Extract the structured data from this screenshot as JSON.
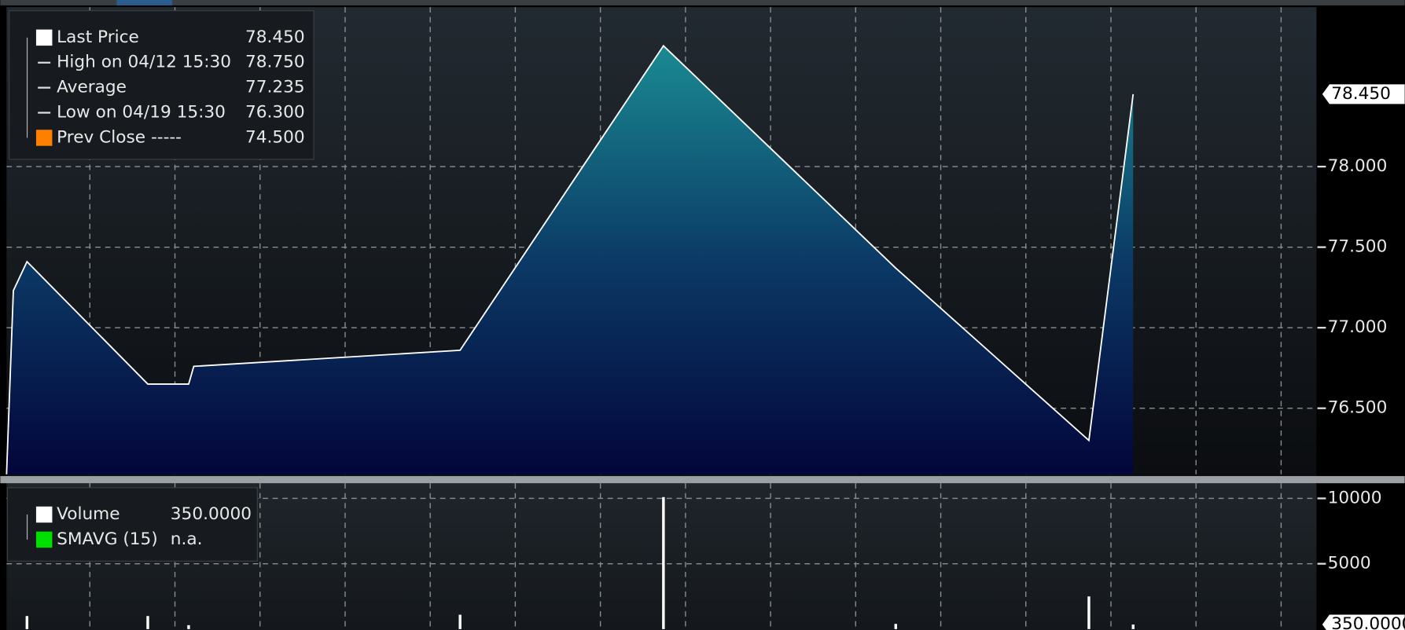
{
  "chart_data": [
    {
      "type": "area",
      "legend": [
        {
          "label": "Last Price",
          "value": "78.450"
        },
        {
          "label": "High on 04/12 15:30",
          "value": "78.750"
        },
        {
          "label": "Average",
          "value": "77.235"
        },
        {
          "label": "Low on 04/19 15:30",
          "value": "76.300"
        },
        {
          "label": "Prev Close -----",
          "value": "74.500"
        }
      ],
      "series": [
        {
          "name": "Last Price",
          "color": "#ffffff",
          "x": [
            0.08,
            0.24,
            1.66,
            2.14,
            2.2,
            5.33,
            7.72,
            10.45,
            12.72,
            13.24
          ],
          "values": [
            77.23,
            77.41,
            76.65,
            76.65,
            76.76,
            76.86,
            78.75,
            77.37,
            76.3,
            78.45
          ]
        }
      ],
      "last_label": {
        "value": 78.45,
        "label": "78.450"
      },
      "xlim": [
        0,
        15.4
      ],
      "ylim": [
        76.09,
        78.99
      ],
      "yticks": [
        {
          "value": 76.5,
          "label": "76.500"
        },
        {
          "value": 77,
          "label": "77.000"
        },
        {
          "value": 77.5,
          "label": "77.500"
        },
        {
          "value": 78,
          "label": "78.000"
        }
      ],
      "grid": true
    },
    {
      "type": "bar",
      "legend": [
        {
          "label": "Volume",
          "value": "350.0000"
        },
        {
          "label": "SMAVG (15)",
          "value": "n.a."
        }
      ],
      "series": [
        {
          "name": "Volume",
          "color": "#ffffff",
          "x": [
            0.24,
            1.66,
            2.14,
            5.33,
            7.72,
            10.45,
            12.72,
            13.24
          ],
          "values": [
            1000,
            1000,
            300,
            1100,
            10100,
            400,
            2500,
            350
          ]
        }
      ],
      "last_label": {
        "value": 350,
        "label": "350.0000"
      },
      "xlim": [
        0,
        15.4
      ],
      "ylim": [
        0,
        11160
      ],
      "yticks": [
        5000,
        10000
      ],
      "grid": true
    }
  ]
}
